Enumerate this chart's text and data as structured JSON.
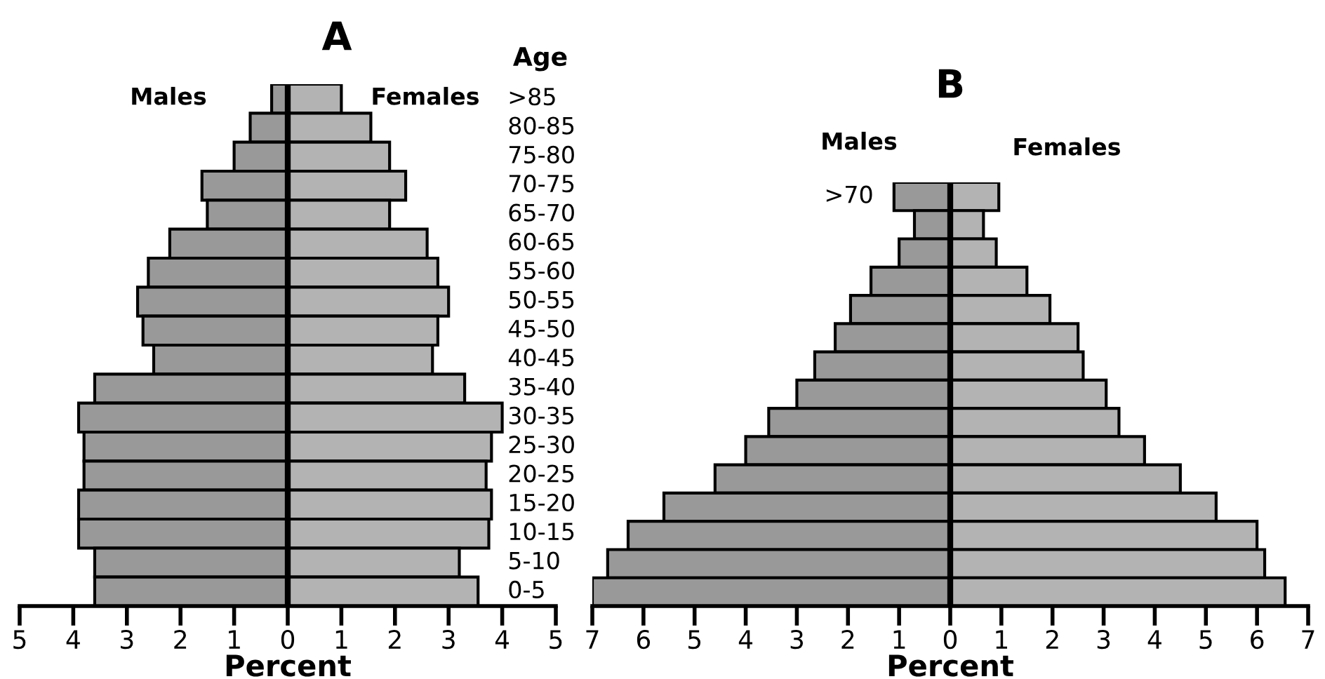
{
  "chart_data": [
    {
      "type": "bar",
      "orientation": "horizontal",
      "title": "A",
      "xlabel": "Percent",
      "ylabel": "Age",
      "categories": [
        ">85",
        "80-85",
        "75-80",
        "70-75",
        "65-70",
        "60-65",
        "55-60",
        "50-55",
        "45-50",
        "40-45",
        "35-40",
        "30-35",
        "25-30",
        "20-25",
        "15-20",
        "10-15",
        "5-10",
        "0-5"
      ],
      "series": [
        {
          "name": "Males",
          "color": "#999999",
          "values": [
            -0.3,
            -0.7,
            -1.0,
            -1.6,
            -1.5,
            -2.2,
            -2.6,
            -2.8,
            -2.7,
            -2.5,
            -3.6,
            -3.9,
            -3.8,
            -3.8,
            -3.9,
            -3.9,
            -3.6,
            -3.6
          ]
        },
        {
          "name": "Females",
          "color": "#b3b3b3",
          "values": [
            1.0,
            1.55,
            1.9,
            2.2,
            1.9,
            2.6,
            2.8,
            3.0,
            2.8,
            2.7,
            3.3,
            4.0,
            3.8,
            3.7,
            3.8,
            3.75,
            3.2,
            3.55
          ]
        }
      ],
      "xlim": [
        -5,
        5
      ],
      "xticks": [
        {
          "value": -5,
          "label": "5"
        },
        {
          "value": -4,
          "label": "4"
        },
        {
          "value": -3,
          "label": "3"
        },
        {
          "value": -2,
          "label": "2"
        },
        {
          "value": -1,
          "label": "1"
        },
        0,
        1,
        2,
        3,
        4,
        5
      ],
      "ref_lines": [
        {
          "axis": "x",
          "value": 0,
          "color": "#000000"
        }
      ],
      "stacked": true,
      "grid": false,
      "legend": false
    },
    {
      "type": "bar",
      "orientation": "horizontal",
      "title": "B",
      "xlabel": "Percent",
      "categories": [
        ">70",
        null,
        null,
        null,
        null,
        null,
        null,
        null,
        null,
        null,
        null,
        null,
        null,
        null,
        null
      ],
      "series": [
        {
          "name": "Males",
          "color": "#999999",
          "values": [
            -1.1,
            -0.7,
            -1.0,
            -1.55,
            -1.95,
            -2.25,
            -2.65,
            -3.0,
            -3.55,
            -4.0,
            -4.6,
            -5.6,
            -6.3,
            -6.7,
            -7.0
          ]
        },
        {
          "name": "Females",
          "color": "#b3b3b3",
          "values": [
            0.95,
            0.65,
            0.9,
            1.5,
            1.95,
            2.5,
            2.6,
            3.05,
            3.3,
            3.8,
            4.5,
            5.2,
            6.0,
            6.15,
            6.55
          ]
        }
      ],
      "xlim": [
        -7,
        7
      ],
      "xticks": [
        {
          "value": -7,
          "label": "7"
        },
        {
          "value": -6,
          "label": "6"
        },
        {
          "value": -5,
          "label": "5"
        },
        {
          "value": -4,
          "label": "4"
        },
        {
          "value": -3,
          "label": "3"
        },
        {
          "value": -2,
          "label": "2"
        },
        {
          "value": -1,
          "label": "1"
        },
        0,
        1,
        2,
        3,
        4,
        5,
        6,
        7
      ],
      "ref_lines": [
        {
          "axis": "x",
          "value": 0,
          "color": "#000000"
        }
      ],
      "stacked": true,
      "grid": false,
      "legend": false
    }
  ]
}
